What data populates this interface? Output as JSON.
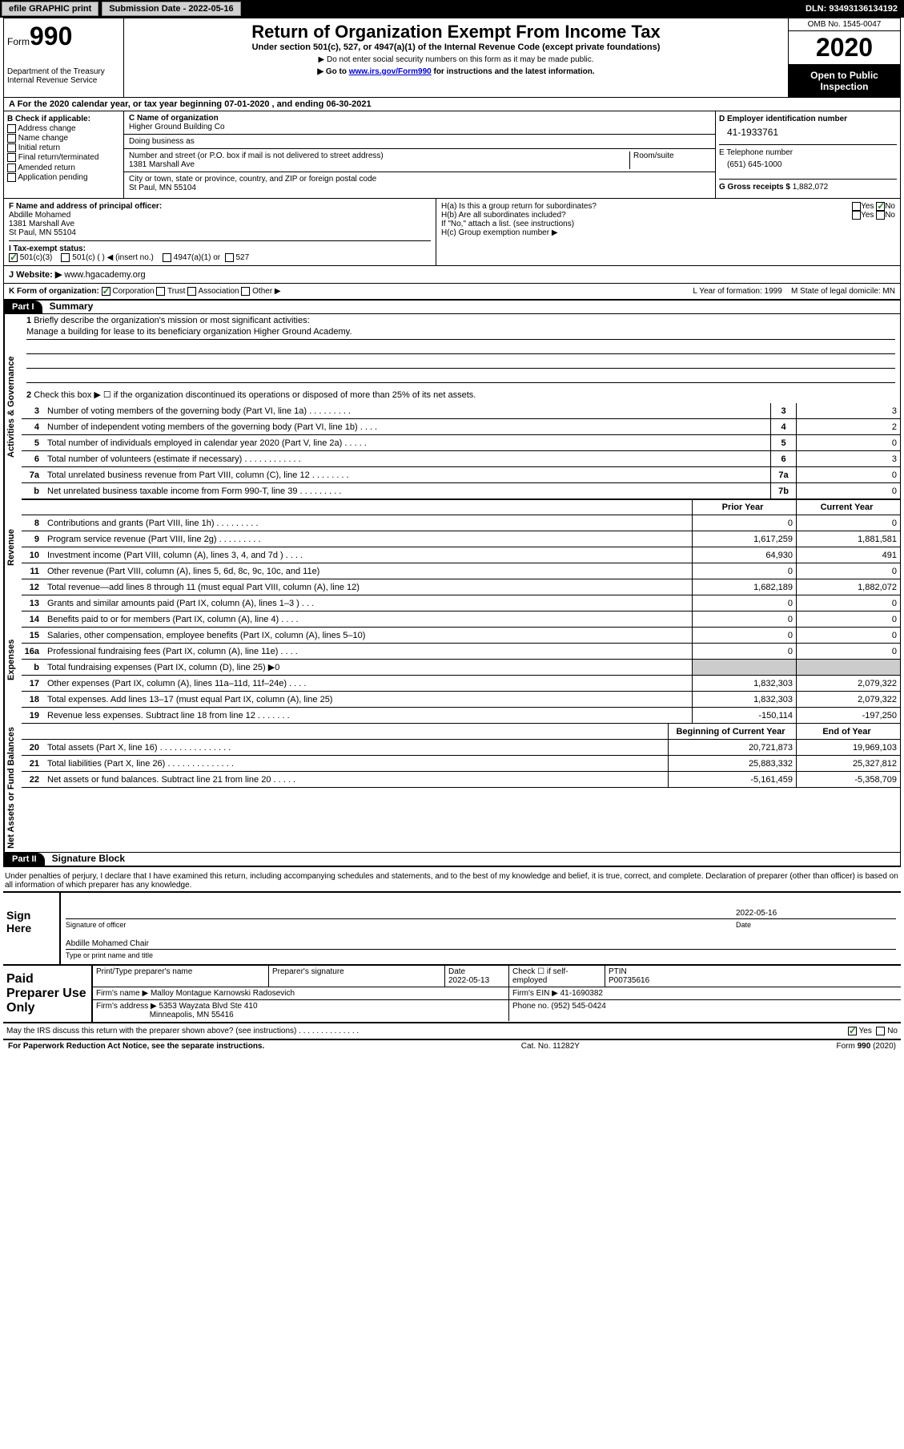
{
  "topbar": {
    "efile": "efile GRAPHIC print",
    "sub_label": "Submission Date - 2022-05-16",
    "dln": "DLN: 93493136134192"
  },
  "header": {
    "form_word": "Form",
    "form_num": "990",
    "dept1": "Department of the Treasury",
    "dept2": "Internal Revenue Service",
    "title": "Return of Organization Exempt From Income Tax",
    "subtitle": "Under section 501(c), 527, or 4947(a)(1) of the Internal Revenue Code (except private foundations)",
    "note1": "▶ Do not enter social security numbers on this form as it may be made public.",
    "note2_pre": "▶ Go to ",
    "note2_link": "www.irs.gov/Form990",
    "note2_post": " for instructions and the latest information.",
    "omb": "OMB No. 1545-0047",
    "year": "2020",
    "inspect": "Open to Public Inspection"
  },
  "rowA": "A For the 2020 calendar year, or tax year beginning 07-01-2020    , and ending 06-30-2021",
  "colB": {
    "label": "B Check if applicable:",
    "opts": [
      "Address change",
      "Name change",
      "Initial return",
      "Final return/terminated",
      "Amended return",
      "Application pending"
    ]
  },
  "colC": {
    "name_label": "C Name of organization",
    "name": "Higher Ground Building Co",
    "dba_label": "Doing business as",
    "dba": "",
    "street_label": "Number and street (or P.O. box if mail is not delivered to street address)",
    "street": "1381 Marshall Ave",
    "room_label": "Room/suite",
    "city_label": "City or town, state or province, country, and ZIP or foreign postal code",
    "city": "St Paul, MN  55104"
  },
  "colD": {
    "ein_label": "D Employer identification number",
    "ein": "41-1933761",
    "tel_label": "E Telephone number",
    "tel": "(651) 645-1000",
    "gross_label": "G Gross receipts $",
    "gross": "1,882,072"
  },
  "rowF": {
    "label": "F  Name and address of principal officer:",
    "name": "Abdille Mohamed",
    "addr1": "1381 Marshall Ave",
    "addr2": "St Paul, MN  55104"
  },
  "rowH": {
    "ha": "H(a)  Is this a group return for subordinates?",
    "hb": "H(b)  Are all subordinates included?",
    "hb_note": "If \"No,\" attach a list. (see instructions)",
    "hc": "H(c)  Group exemption number ▶",
    "yes": "Yes",
    "no": "No"
  },
  "rowI": {
    "label": "I    Tax-exempt status:",
    "o1": "501(c)(3)",
    "o2": "501(c) (   ) ◀ (insert no.)",
    "o3": "4947(a)(1) or",
    "o4": "527"
  },
  "rowJ": {
    "label": "J   Website: ▶ ",
    "url": "www.hgacademy.org"
  },
  "rowK": {
    "k": "K Form of organization:",
    "corp": "Corporation",
    "trust": "Trust",
    "assoc": "Association",
    "other": "Other ▶",
    "l": "L Year of formation: 1999",
    "m": "M State of legal domicile: MN"
  },
  "part1": {
    "hdr": "Part I",
    "title": "Summary"
  },
  "tabs": {
    "gov": "Activities & Governance",
    "rev": "Revenue",
    "exp": "Expenses",
    "net": "Net Assets or Fund Balances"
  },
  "summary": {
    "l1": "Briefly describe the organization's mission or most significant activities:",
    "mission": "Manage a building for lease to its beneficiary organization Higher Ground Academy.",
    "l2": "Check this box ▶ ☐  if the organization discontinued its operations or disposed of more than 25% of its net assets.",
    "lines_single": [
      {
        "n": "3",
        "d": "Number of voting members of the governing body (Part VI, line 1a)   .    .    .    .    .    .    .    .    .",
        "b": "3",
        "v": "3"
      },
      {
        "n": "4",
        "d": "Number of independent voting members of the governing body (Part VI, line 1b)   .    .    .    .",
        "b": "4",
        "v": "2"
      },
      {
        "n": "5",
        "d": "Total number of individuals employed in calendar year 2020 (Part V, line 2a)   .    .    .    .    .",
        "b": "5",
        "v": "0"
      },
      {
        "n": "6",
        "d": "Total number of volunteers (estimate if necessary)   .    .    .    .    .    .    .    .    .    .    .    .",
        "b": "6",
        "v": "3"
      },
      {
        "n": "7a",
        "d": "Total unrelated business revenue from Part VIII, column (C), line 12   .    .    .    .    .    .    .    .",
        "b": "7a",
        "v": "0"
      },
      {
        "n": "b",
        "d": "Net unrelated business taxable income from Form 990-T, line 39   .    .    .    .    .    .    .    .    .",
        "b": "7b",
        "v": "0"
      }
    ],
    "col_hdr": {
      "prior": "Prior Year",
      "current": "Current Year"
    },
    "rev_lines": [
      {
        "n": "8",
        "d": "Contributions and grants (Part VIII, line 1h)   .    .    .    .    .    .    .    .    .",
        "p": "0",
        "c": "0"
      },
      {
        "n": "9",
        "d": "Program service revenue (Part VIII, line 2g)   .    .    .    .    .    .    .    .    .",
        "p": "1,617,259",
        "c": "1,881,581"
      },
      {
        "n": "10",
        "d": "Investment income (Part VIII, column (A), lines 3, 4, and 7d )   .    .    .    .",
        "p": "64,930",
        "c": "491"
      },
      {
        "n": "11",
        "d": "Other revenue (Part VIII, column (A), lines 5, 6d, 8c, 9c, 10c, and 11e)",
        "p": "0",
        "c": "0"
      },
      {
        "n": "12",
        "d": "Total revenue—add lines 8 through 11 (must equal Part VIII, column (A), line 12)",
        "p": "1,682,189",
        "c": "1,882,072"
      }
    ],
    "exp_lines": [
      {
        "n": "13",
        "d": "Grants and similar amounts paid (Part IX, column (A), lines 1–3 )   .    .    .",
        "p": "0",
        "c": "0"
      },
      {
        "n": "14",
        "d": "Benefits paid to or for members (Part IX, column (A), line 4)   .    .    .    .",
        "p": "0",
        "c": "0"
      },
      {
        "n": "15",
        "d": "Salaries, other compensation, employee benefits (Part IX, column (A), lines 5–10)",
        "p": "0",
        "c": "0"
      },
      {
        "n": "16a",
        "d": "Professional fundraising fees (Part IX, column (A), line 11e)   .    .    .    .",
        "p": "0",
        "c": "0"
      },
      {
        "n": "b",
        "d": "Total fundraising expenses (Part IX, column (D), line 25) ▶0",
        "p": "",
        "c": "",
        "shade": true
      },
      {
        "n": "17",
        "d": "Other expenses (Part IX, column (A), lines 11a–11d, 11f–24e)   .    .    .    .",
        "p": "1,832,303",
        "c": "2,079,322"
      },
      {
        "n": "18",
        "d": "Total expenses. Add lines 13–17 (must equal Part IX, column (A), line 25)",
        "p": "1,832,303",
        "c": "2,079,322"
      },
      {
        "n": "19",
        "d": "Revenue less expenses. Subtract line 18 from line 12   .    .    .    .    .    .    .",
        "p": "-150,114",
        "c": "-197,250"
      }
    ],
    "net_hdr": {
      "p": "Beginning of Current Year",
      "c": "End of Year"
    },
    "net_lines": [
      {
        "n": "20",
        "d": "Total assets (Part X, line 16)   .    .    .    .    .    .    .    .    .    .    .    .    .    .    .",
        "p": "20,721,873",
        "c": "19,969,103"
      },
      {
        "n": "21",
        "d": "Total liabilities (Part X, line 26)   .    .    .    .    .    .    .    .    .    .    .    .    .    .",
        "p": "25,883,332",
        "c": "25,327,812"
      },
      {
        "n": "22",
        "d": "Net assets or fund balances. Subtract line 21 from line 20   .    .    .    .    .",
        "p": "-5,161,459",
        "c": "-5,358,709"
      }
    ]
  },
  "part2": {
    "hdr": "Part II",
    "title": "Signature Block"
  },
  "perjury": "Under penalties of perjury, I declare that I have examined this return, including accompanying schedules and statements, and to the best of my knowledge and belief, it is true, correct, and complete. Declaration of preparer (other than officer) is based on all information of which preparer has any knowledge.",
  "sign": {
    "here": "Sign Here",
    "sig_officer": "Signature of officer",
    "date_label": "Date",
    "date": "2022-05-16",
    "name": "Abdille Mohamed Chair",
    "name_label": "Type or print name and title"
  },
  "prep": {
    "title": "Paid Preparer Use Only",
    "h1": "Print/Type preparer's name",
    "h2": "Preparer's signature",
    "h3": "Date",
    "h3v": "2022-05-13",
    "h4": "Check ☐ if self-employed",
    "h5": "PTIN",
    "h5v": "P00735616",
    "firm_label": "Firm's name     ▶",
    "firm": "Malloy Montague Karnowski Radosevich",
    "ein_label": "Firm's EIN ▶",
    "ein": "41-1690382",
    "addr_label": "Firm's address ▶",
    "addr1": "5353 Wayzata Blvd Ste 410",
    "addr2": "Minneapolis, MN  55416",
    "phone_label": "Phone no.",
    "phone": "(952) 545-0424"
  },
  "discuss": "May the IRS discuss this return with the preparer shown above? (see instructions)   .    .    .    .    .    .    .    .    .    .    .    .    .    .",
  "footer": {
    "left": "For Paperwork Reduction Act Notice, see the separate instructions.",
    "mid": "Cat. No. 11282Y",
    "right": "Form 990 (2020)"
  }
}
